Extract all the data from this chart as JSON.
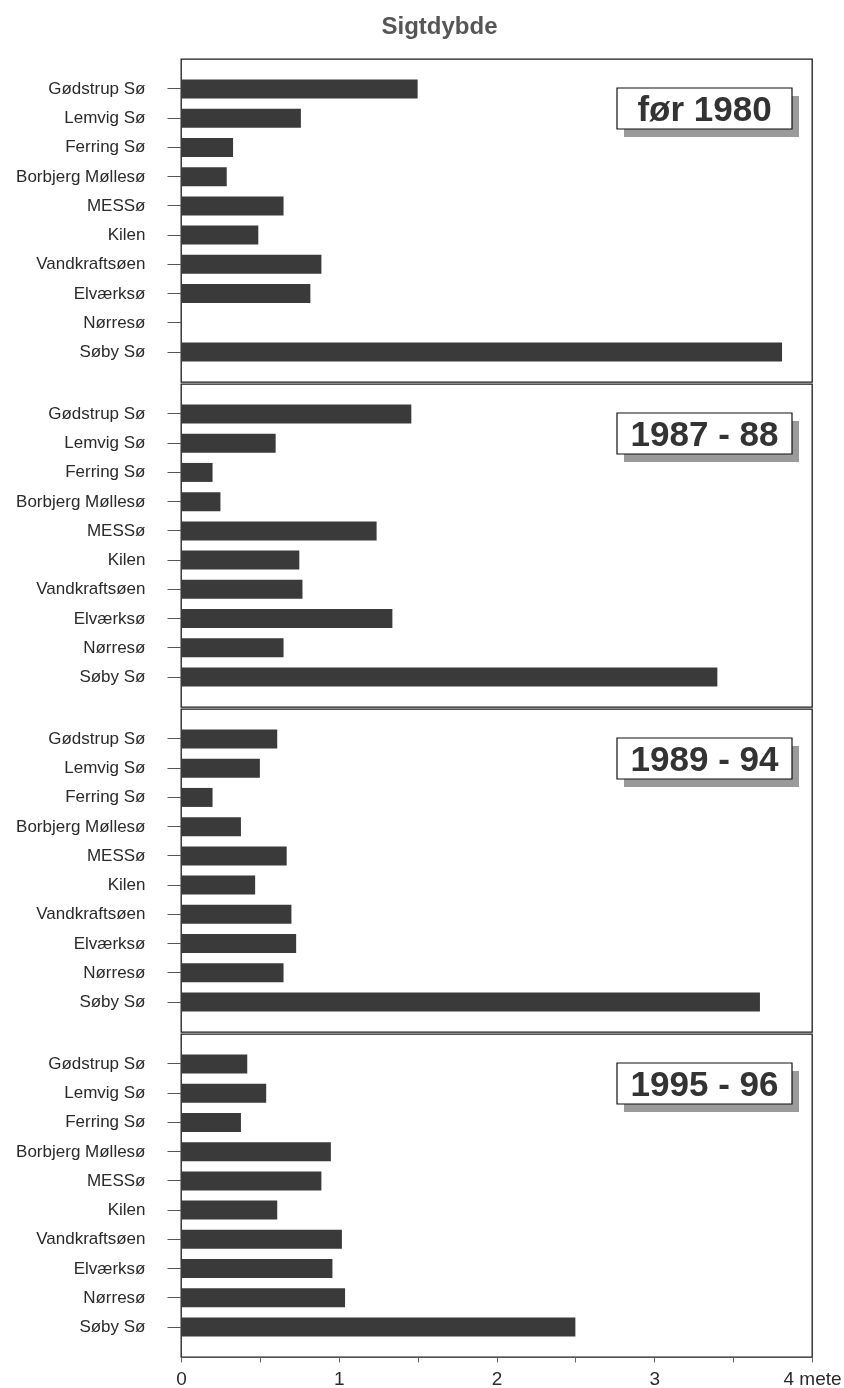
{
  "chart_data": [
    {
      "type": "bar",
      "orientation": "horizontal",
      "title": "Sigtdybde",
      "annotations": [
        "før 1980"
      ],
      "categories": [
        "Gødstrup Sø",
        "Lemvig Sø",
        "Ferring Sø",
        "Borbjerg Møllesø",
        "MESSø",
        "Kilen",
        "Vandkraftsøen",
        "Elværksø",
        "Nørresø",
        "Søby Sø"
      ],
      "values": [
        1.5,
        0.76,
        0.33,
        0.29,
        0.65,
        0.49,
        0.89,
        0.82,
        null,
        3.81
      ],
      "color": "#3a3a3a",
      "xlim": [
        0,
        4
      ],
      "tick_labels": "y"
    },
    {
      "type": "bar",
      "orientation": "horizontal",
      "annotations": [
        "1987 - 88"
      ],
      "categories": [
        "Gødstrup Sø",
        "Lemvig Sø",
        "Ferring Sø",
        "Borbjerg Møllesø",
        "MESSø",
        "Kilen",
        "Vandkraftsøen",
        "Elværksø",
        "Nørresø",
        "Søby Sø"
      ],
      "values": [
        1.46,
        0.6,
        0.2,
        0.25,
        1.24,
        0.75,
        0.77,
        1.34,
        0.65,
        3.4
      ],
      "color": "#3a3a3a",
      "xlim": [
        0,
        4
      ],
      "tick_labels": "y"
    },
    {
      "type": "bar",
      "orientation": "horizontal",
      "annotations": [
        "1989 - 94"
      ],
      "categories": [
        "Gødstrup Sø",
        "Lemvig Sø",
        "Ferring Sø",
        "Borbjerg Møllesø",
        "MESSø",
        "Kilen",
        "Vandkraftsøen",
        "Elværksø",
        "Nørresø",
        "Søby Sø"
      ],
      "values": [
        0.61,
        0.5,
        0.2,
        0.38,
        0.67,
        0.47,
        0.7,
        0.73,
        0.65,
        3.67
      ],
      "color": "#3a3a3a",
      "xlim": [
        0,
        4
      ],
      "tick_labels": "y"
    },
    {
      "type": "bar",
      "orientation": "horizontal",
      "annotations": [
        "1995 - 96"
      ],
      "categories": [
        "Gødstrup Sø",
        "Lemvig Sø",
        "Ferring Sø",
        "Borbjerg Møllesø",
        "MESSø",
        "Kilen",
        "Vandkraftsøen",
        "Elværksø",
        "Nørresø",
        "Søby Sø"
      ],
      "values": [
        0.42,
        0.54,
        0.38,
        0.95,
        0.89,
        0.61,
        1.02,
        0.96,
        1.04,
        2.5
      ],
      "color": "#3a3a3a",
      "xlim": [
        0,
        4
      ],
      "xticks": [
        0,
        {
          "value": 0.5,
          "label": null
        },
        1,
        {
          "value": 1.5,
          "label": null
        },
        2,
        {
          "value": 2.5,
          "label": null
        },
        3,
        {
          "value": 3.5,
          "label": null
        },
        {
          "value": 4,
          "label": "4 mete"
        }
      ]
    }
  ]
}
